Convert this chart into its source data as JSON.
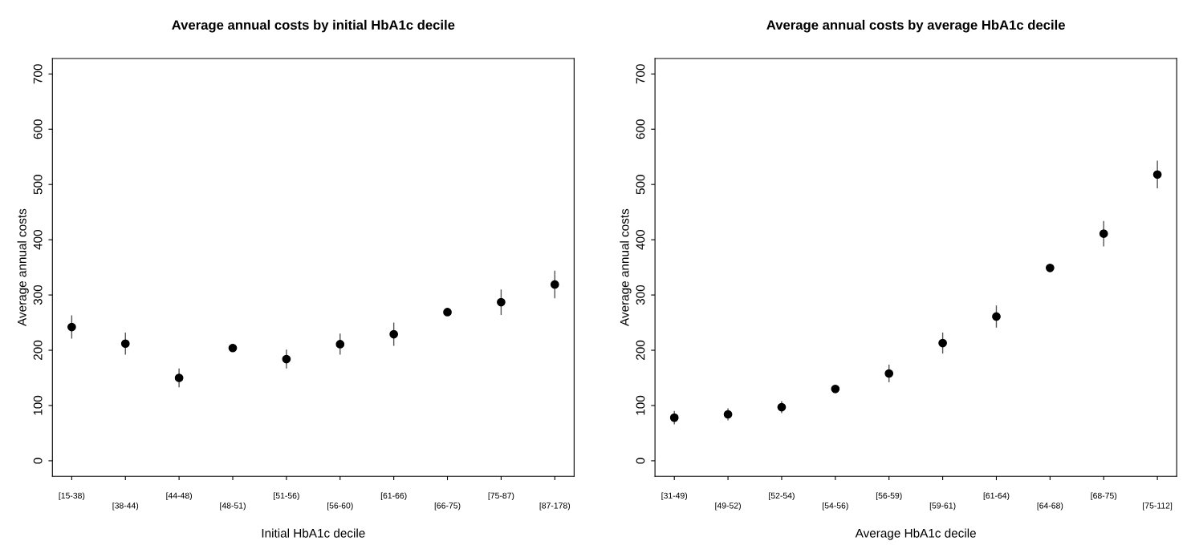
{
  "chart_data": [
    {
      "type": "scatter",
      "title": "Average annual costs by initial HbA1c decile",
      "xlabel": "Initial HbA1c decile",
      "ylabel": "Average annual costs",
      "categories": [
        "[15-38)",
        "[38-44)",
        "[44-48)",
        "[48-51)",
        "[51-56)",
        "[56-60)",
        "[61-66)",
        "[66-75)",
        "[75-87)",
        "[87-178)"
      ],
      "series": [
        {
          "color": "#000000",
          "values": [
            242,
            212,
            150,
            204,
            184,
            211,
            229,
            269,
            287,
            319
          ],
          "errors": [
            21,
            20,
            17,
            null,
            17,
            19,
            21,
            null,
            23,
            25
          ]
        }
      ],
      "ylim": [
        -28,
        728
      ],
      "yticks": [
        0,
        100,
        200,
        300,
        400,
        500,
        600,
        700
      ],
      "marker": "circle",
      "grid": false,
      "legend": false
    },
    {
      "type": "scatter",
      "title": "Average annual costs by average HbA1c decile",
      "xlabel": "Average HbA1c decile",
      "ylabel": "Average annual costs",
      "categories": [
        "[31-49)",
        "[49-52)",
        "[52-54)",
        "[54-56)",
        "[56-59)",
        "[59-61)",
        "[61-64)",
        "[64-68)",
        "[68-75)",
        "[75-112]"
      ],
      "series": [
        {
          "color": "#000000",
          "values": [
            78,
            84,
            97,
            130,
            158,
            213,
            261,
            349,
            411,
            518
          ],
          "errors": [
            12,
            11,
            11,
            null,
            16,
            19,
            20,
            null,
            23,
            25
          ]
        }
      ],
      "ylim": [
        -28,
        728
      ],
      "yticks": [
        0,
        100,
        200,
        300,
        400,
        500,
        600,
        700
      ],
      "marker": "circle",
      "grid": false,
      "legend": false
    }
  ]
}
